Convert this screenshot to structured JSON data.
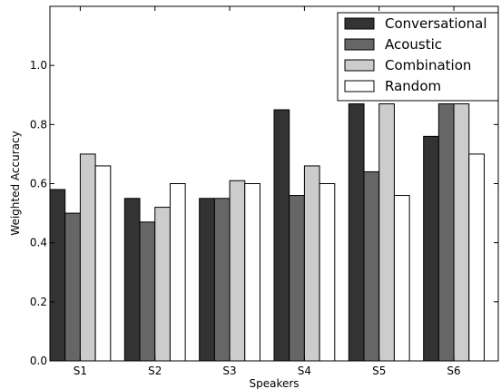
{
  "chart_data": {
    "type": "bar",
    "title": "",
    "xlabel": "Speakers",
    "ylabel": "Weighted Accuracy",
    "categories": [
      "S1",
      "S2",
      "S3",
      "S4",
      "S5",
      "S6"
    ],
    "ylim": [
      0,
      1.2
    ],
    "yticks": [
      "0.0",
      "0.2",
      "0.4",
      "0.6",
      "0.8",
      "1.0"
    ],
    "grid": false,
    "legend_position": "top-right",
    "series": [
      {
        "name": "Conversational",
        "color": "#333333",
        "values": [
          0.58,
          0.55,
          0.55,
          0.85,
          0.87,
          0.76
        ]
      },
      {
        "name": "Acoustic",
        "color": "#666666",
        "values": [
          0.5,
          0.47,
          0.55,
          0.56,
          0.64,
          0.87
        ]
      },
      {
        "name": "Combination",
        "color": "#cccccc",
        "values": [
          0.7,
          0.52,
          0.61,
          0.66,
          0.87,
          0.87
        ]
      },
      {
        "name": "Random",
        "color": "#ffffff",
        "values": [
          0.66,
          0.6,
          0.6,
          0.6,
          0.56,
          0.7
        ]
      }
    ]
  }
}
